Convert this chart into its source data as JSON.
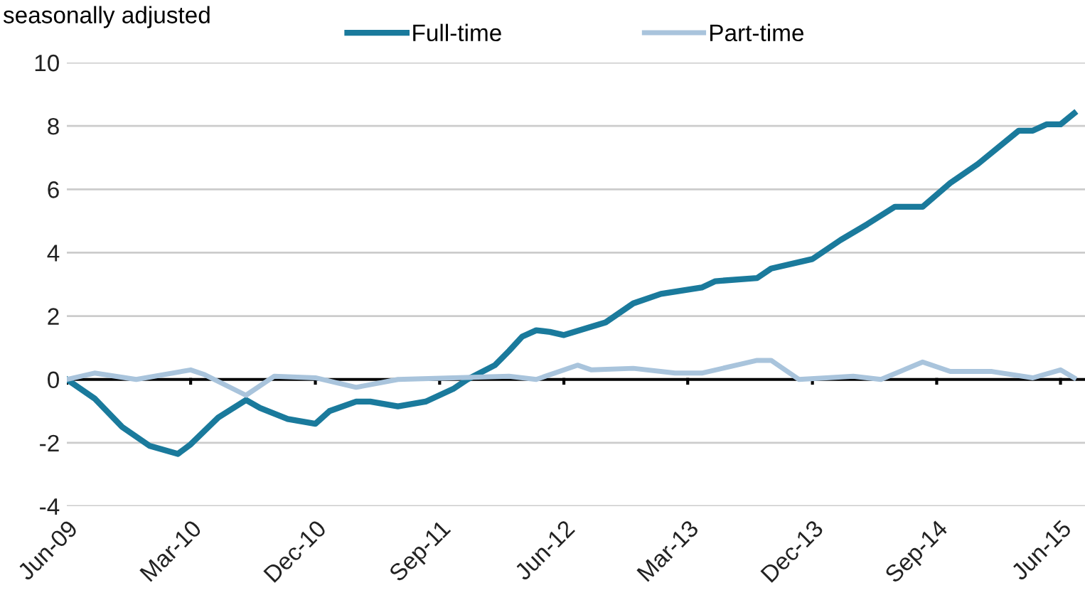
{
  "chart_data": {
    "type": "line",
    "title": "seasonally adjusted",
    "series": [
      {
        "name": "Full-time",
        "color": "#1a7a9c",
        "x": [
          "2009-06",
          "2009-08",
          "2009-10",
          "2009-12",
          "2010-02",
          "2010-03",
          "2010-05",
          "2010-07",
          "2010-08",
          "2010-10",
          "2010-12",
          "2011-01",
          "2011-03",
          "2011-04",
          "2011-06",
          "2011-08",
          "2011-10",
          "2011-11",
          "2012-01",
          "2012-02",
          "2012-03",
          "2012-04",
          "2012-05",
          "2012-06",
          "2012-09",
          "2012-11",
          "2013-01",
          "2013-04",
          "2013-05",
          "2013-08",
          "2013-09",
          "2013-12",
          "2014-02",
          "2014-04",
          "2014-06",
          "2014-08",
          "2014-10",
          "2014-12",
          "2015-03",
          "2015-04",
          "2015-05",
          "2015-06",
          "2015-07"
        ],
        "values": [
          0,
          -0.6,
          -1.5,
          -2.1,
          -2.35,
          -2.05,
          -1.2,
          -0.65,
          -0.9,
          -1.25,
          -1.4,
          -1.0,
          -0.7,
          -0.7,
          -0.85,
          -0.7,
          -0.3,
          0.0,
          0.45,
          0.9,
          1.35,
          1.55,
          1.5,
          1.4,
          1.8,
          2.4,
          2.7,
          2.9,
          3.1,
          3.2,
          3.5,
          3.8,
          4.4,
          4.9,
          5.45,
          5.45,
          6.2,
          6.8,
          7.85,
          7.85,
          8.05,
          8.05,
          8.4
        ]
      },
      {
        "name": "Part-time",
        "color": "#a9c4dc",
        "x": [
          "2009-06",
          "2009-08",
          "2009-11",
          "2010-03",
          "2010-04",
          "2010-07",
          "2010-09",
          "2010-12",
          "2011-03",
          "2011-06",
          "2011-10",
          "2012-02",
          "2012-04",
          "2012-07",
          "2012-08",
          "2012-11",
          "2013-02",
          "2013-04",
          "2013-08",
          "2013-09",
          "2013-11",
          "2014-01",
          "2014-03",
          "2014-05",
          "2014-08",
          "2014-10",
          "2015-01",
          "2015-04",
          "2015-06",
          "2015-07"
        ],
        "values": [
          0,
          0.2,
          0.0,
          0.3,
          0.15,
          -0.5,
          0.1,
          0.05,
          -0.25,
          0.0,
          0.05,
          0.1,
          0.0,
          0.45,
          0.3,
          0.35,
          0.2,
          0.2,
          0.6,
          0.6,
          0.0,
          0.05,
          0.1,
          0.0,
          0.55,
          0.25,
          0.25,
          0.05,
          0.3,
          0.05
        ]
      }
    ],
    "xlim": [
      "2009-06-01",
      "2015-07-25"
    ],
    "xticks": [
      {
        "value": "2009-06",
        "label": "Jun-09"
      },
      {
        "value": "2010-03",
        "label": "Mar-10"
      },
      {
        "value": "2010-12",
        "label": "Dec-10"
      },
      {
        "value": "2011-09",
        "label": "Sep-11"
      },
      {
        "value": "2012-06",
        "label": "Jun-12"
      },
      {
        "value": "2013-03",
        "label": "Mar-13"
      },
      {
        "value": "2013-12",
        "label": "Dec-13"
      },
      {
        "value": "2014-09",
        "label": "Sep-14"
      },
      {
        "value": "2015-06",
        "label": "Jun-15"
      }
    ],
    "ylim": [
      -4,
      10
    ],
    "yticks": [
      -4,
      -2,
      0,
      2,
      4,
      6,
      8,
      10
    ],
    "ref_lines": [
      {
        "axis": "y",
        "value": 0,
        "color": "#000000"
      }
    ],
    "grid": "y",
    "legend": "top"
  }
}
